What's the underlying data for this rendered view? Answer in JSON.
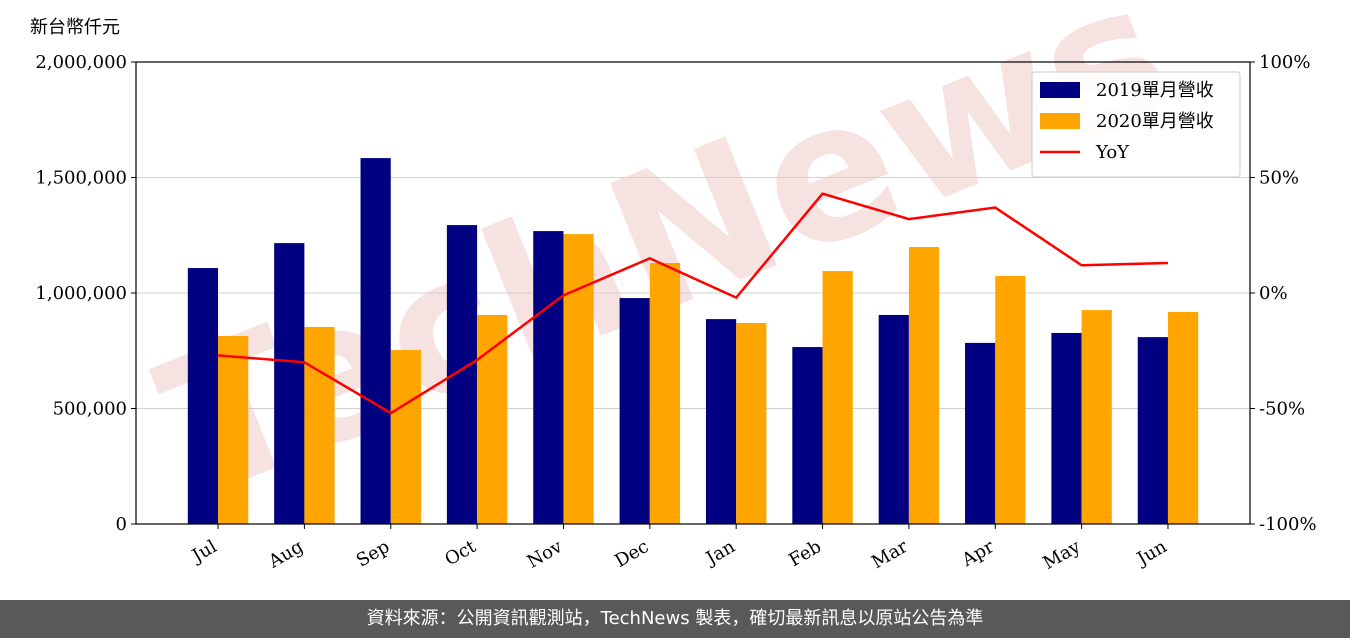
{
  "chart_data": {
    "type": "bar_line",
    "y_label": "新台幣仟元",
    "watermark": "TechNews",
    "categories": [
      "Jul",
      "Aug",
      "Sep",
      "Oct",
      "Nov",
      "Dec",
      "Jan",
      "Feb",
      "Mar",
      "Apr",
      "May",
      "Jun"
    ],
    "series": [
      {
        "name": "2019單月營收",
        "color": "#000080",
        "type": "bar",
        "values": [
          1108000,
          1216000,
          1584000,
          1294000,
          1268000,
          978000,
          887000,
          766000,
          905000,
          784000,
          827000,
          809000
        ]
      },
      {
        "name": "2020單月營收",
        "color": "#ffa500",
        "type": "bar",
        "values": [
          814000,
          853000,
          753000,
          905000,
          1255000,
          1130000,
          870000,
          1095000,
          1199000,
          1074000,
          926000,
          918000
        ]
      },
      {
        "name": "YoY",
        "color": "#ff0000",
        "type": "line",
        "axis": "y2",
        "values": [
          -27,
          -30,
          -52,
          -29,
          -1,
          15,
          -2,
          43,
          32,
          37,
          12,
          13
        ]
      }
    ],
    "ylim": [
      0,
      2000000
    ],
    "yticks": [
      0,
      {
        "value": 500000,
        "label": "500,000"
      },
      {
        "value": 1000000,
        "label": "1,000,000"
      },
      {
        "value": 1500000,
        "label": "1,500,000"
      },
      {
        "value": 2000000,
        "label": "2,000,000"
      }
    ],
    "y2lim": [
      -100,
      100
    ],
    "y2ticks": [
      {
        "value": -100,
        "label": "-100%"
      },
      {
        "value": -50,
        "label": "-50%"
      },
      {
        "value": 0,
        "label": "0%"
      },
      {
        "value": 50,
        "label": "50%"
      },
      {
        "value": 100,
        "label": "100%"
      }
    ],
    "grid": true,
    "legend": "upper right"
  },
  "footer": "資料來源：公開資訊觀測站，TechNews 製表，確切最新訊息以原站公告為準"
}
